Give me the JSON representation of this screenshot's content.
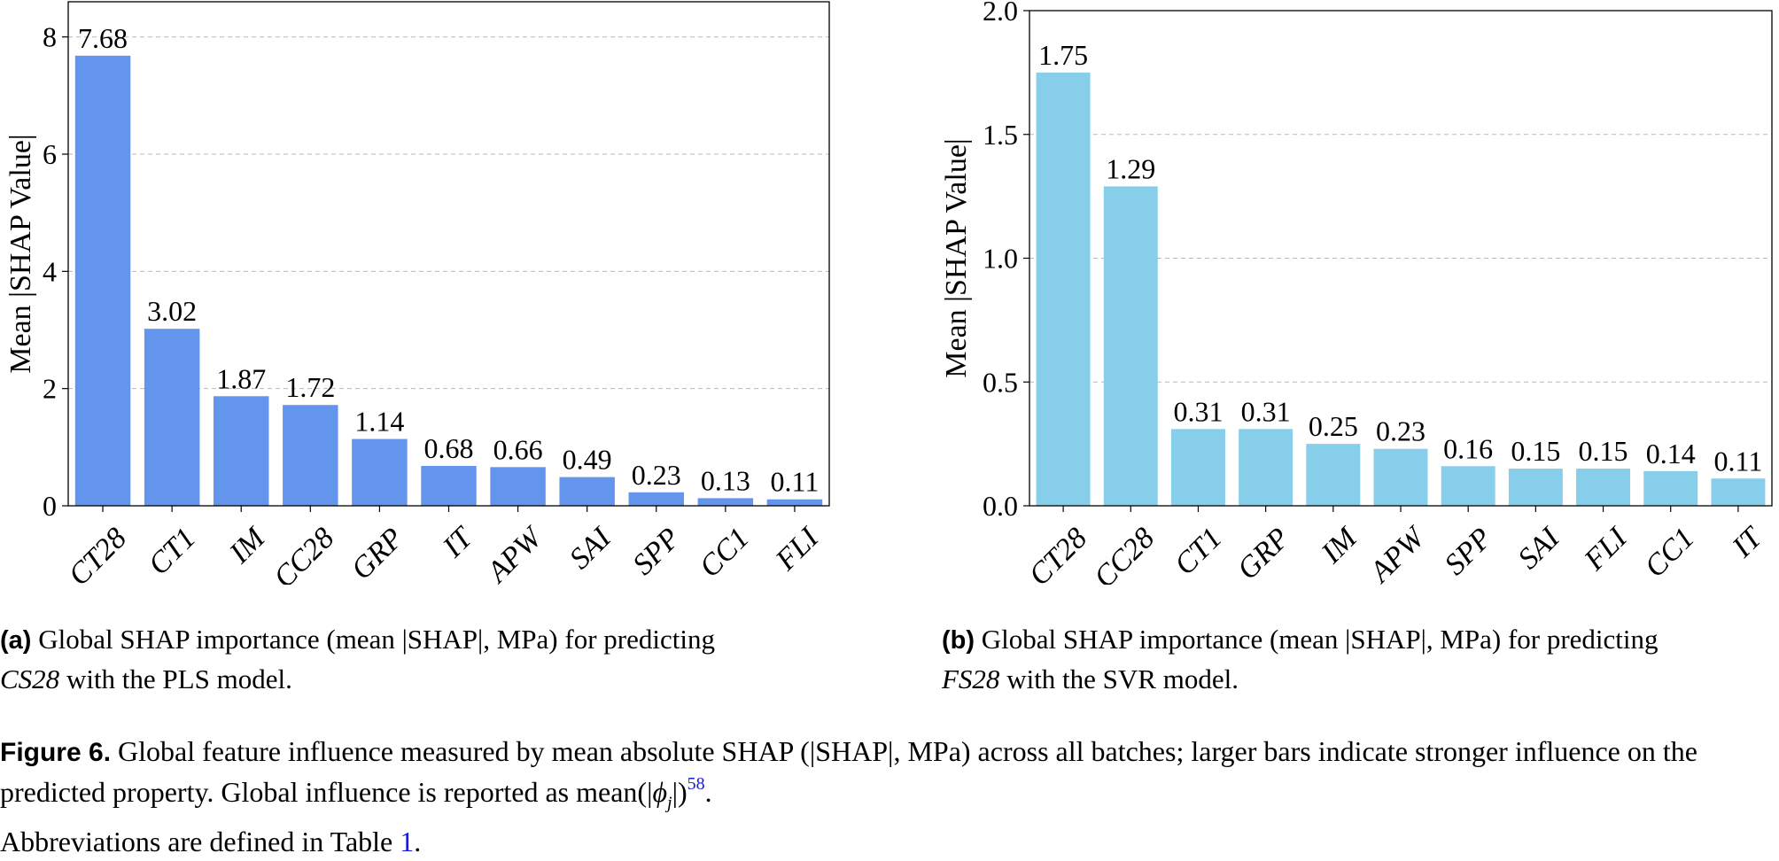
{
  "chart_data": [
    {
      "type": "bar",
      "panel": "a",
      "categories": [
        "CT28",
        "CT1",
        "IM",
        "CC28",
        "GRP",
        "IT",
        "APW",
        "SAI",
        "SPP",
        "CC1",
        "FLI"
      ],
      "values": [
        7.68,
        3.02,
        1.87,
        1.72,
        1.14,
        0.68,
        0.66,
        0.49,
        0.23,
        0.13,
        0.11
      ],
      "value_labels": [
        "7.68",
        "3.02",
        "1.87",
        "1.72",
        "1.14",
        "0.68",
        "0.66",
        "0.49",
        "0.23",
        "0.13",
        "0.11"
      ],
      "ylabel": "Mean |SHAP Value|",
      "xlabel": "",
      "ylim": [
        0,
        8.6
      ],
      "yticks": [
        0,
        2,
        4,
        6,
        8
      ],
      "ytick_labels": [
        "0",
        "2",
        "4",
        "6",
        "8"
      ],
      "bar_color": "#6495ED",
      "grid": "horizontal dashed"
    },
    {
      "type": "bar",
      "panel": "b",
      "categories": [
        "CT28",
        "CC28",
        "CT1",
        "GRP",
        "IM",
        "APW",
        "SPP",
        "SAI",
        "FLI",
        "CC1",
        "IT"
      ],
      "values": [
        1.75,
        1.29,
        0.31,
        0.31,
        0.25,
        0.23,
        0.16,
        0.15,
        0.15,
        0.14,
        0.11
      ],
      "value_labels": [
        "1.75",
        "1.29",
        "0.31",
        "0.31",
        "0.25",
        "0.23",
        "0.16",
        "0.15",
        "0.15",
        "0.14",
        "0.11"
      ],
      "ylabel": "Mean |SHAP Value|",
      "xlabel": "",
      "ylim": [
        0,
        2.0
      ],
      "yticks": [
        0,
        0.5,
        1.0,
        1.5,
        2.0
      ],
      "ytick_labels": [
        "0.0",
        "0.5",
        "1.0",
        "1.5",
        "2.0"
      ],
      "bar_color": "#87CEEB",
      "grid": "horizontal dashed"
    }
  ],
  "captions": {
    "a": {
      "tag": "(a)",
      "text1": " Global SHAP importance (mean |SHAP|, MPa) for predicting",
      "target": "CS28",
      "text2": " with the PLS model."
    },
    "b": {
      "tag": "(b)",
      "text1": " Global SHAP importance (mean |SHAP|, MPa) for predicting",
      "target": "FS28",
      "text2": " with the SVR model."
    }
  },
  "figure_caption": {
    "label": "Figure 6.",
    "text1": " Global feature influence measured by mean absolute SHAP (|SHAP|, MPa) across all batches; larger bars indicate stronger influence on the predicted property. Global influence is reported as mean(|",
    "phi": "ϕ",
    "sub": "j",
    "text2": "|)",
    "ref": "58",
    "text3": ".",
    "text4": "Abbreviations are defined in Table ",
    "table_ref": "1",
    "text5": "."
  }
}
